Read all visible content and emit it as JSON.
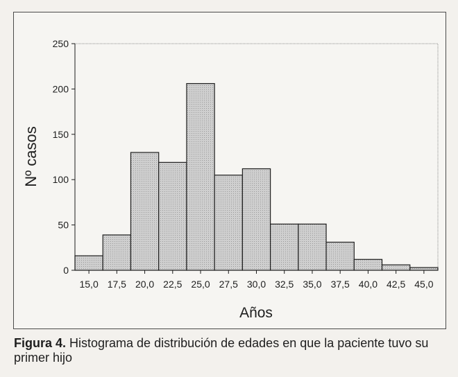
{
  "chart_data": {
    "type": "bar",
    "title": "",
    "xlabel": "Años",
    "ylabel": "Nº casos",
    "ylim": [
      0,
      250
    ],
    "yticks": [
      "0",
      "50",
      "100",
      "150",
      "200",
      "250"
    ],
    "categories": [
      "15,0",
      "17,5",
      "20,0",
      "22,5",
      "25,0",
      "27,5",
      "30,0",
      "32,5",
      "35,0",
      "37,5",
      "40,0",
      "42,5",
      "45,0"
    ],
    "values": [
      16,
      39,
      130,
      119,
      206,
      105,
      112,
      51,
      51,
      31,
      12,
      6,
      3
    ],
    "grid": false,
    "bar_fill": "#cfcfcf",
    "bar_stroke": "#1f1f1f"
  },
  "caption": {
    "label": "Figura 4.",
    "text": " Histograma de distribución de edades en que la paciente tuvo su primer hijo"
  }
}
